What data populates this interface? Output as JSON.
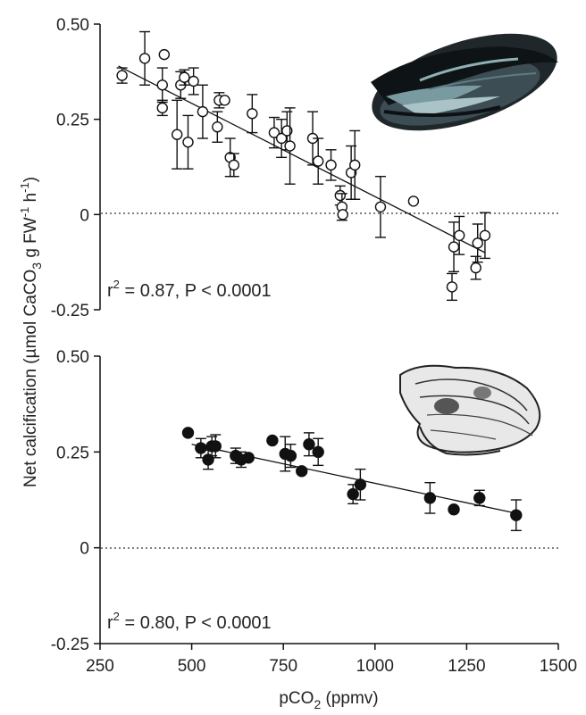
{
  "chart_data": [
    {
      "type": "scatter",
      "id": "mussel",
      "marker": "open-circle",
      "illustration": "mussel-shell",
      "annotation": "r2 = 0.87, P < 0.0001",
      "annotation_parts": {
        "r": "r",
        "exp": "2",
        "rest": " = 0.87, P < 0.0001"
      },
      "xlim": [
        250,
        1500
      ],
      "ylim": [
        -0.25,
        0.5
      ],
      "y_ticks": [
        -0.25,
        0,
        0.25,
        0.5
      ],
      "y_tick_labels": [
        "-0.25",
        "0",
        "0.25",
        "0.50"
      ],
      "trendline": {
        "x": [
          300,
          1300
        ],
        "y": [
          0.39,
          -0.1
        ]
      },
      "zero_line": "dotted",
      "points": [
        {
          "x": 310,
          "y": 0.365,
          "err": 0.02
        },
        {
          "x": 372,
          "y": 0.41,
          "err": 0.07
        },
        {
          "x": 420,
          "y": 0.34,
          "err": 0.045
        },
        {
          "x": 420,
          "y": 0.28,
          "err": 0.02
        },
        {
          "x": 425,
          "y": 0.42,
          "err": 0
        },
        {
          "x": 460,
          "y": 0.21,
          "err": 0.09
        },
        {
          "x": 470,
          "y": 0.34,
          "err": 0.035
        },
        {
          "x": 480,
          "y": 0.36,
          "err": 0.02
        },
        {
          "x": 490,
          "y": 0.19,
          "err": 0.07
        },
        {
          "x": 505,
          "y": 0.35,
          "err": 0.035
        },
        {
          "x": 530,
          "y": 0.27,
          "err": 0.07
        },
        {
          "x": 570,
          "y": 0.23,
          "err": 0.04
        },
        {
          "x": 575,
          "y": 0.3,
          "err": 0.02
        },
        {
          "x": 590,
          "y": 0.3,
          "err": 0
        },
        {
          "x": 605,
          "y": 0.15,
          "err": 0.05
        },
        {
          "x": 615,
          "y": 0.13,
          "err": 0.03
        },
        {
          "x": 665,
          "y": 0.265,
          "err": 0.05
        },
        {
          "x": 725,
          "y": 0.215,
          "err": 0.04
        },
        {
          "x": 745,
          "y": 0.2,
          "err": 0.05
        },
        {
          "x": 760,
          "y": 0.22,
          "err": 0.05
        },
        {
          "x": 768,
          "y": 0.18,
          "err": 0.1
        },
        {
          "x": 830,
          "y": 0.2,
          "err": 0.07
        },
        {
          "x": 845,
          "y": 0.14,
          "err": 0.06
        },
        {
          "x": 880,
          "y": 0.13,
          "err": 0.04
        },
        {
          "x": 905,
          "y": 0.05,
          "err": 0.025
        },
        {
          "x": 910,
          "y": 0.02,
          "err": 0.035
        },
        {
          "x": 912,
          "y": 0.0,
          "err": 0
        },
        {
          "x": 935,
          "y": 0.11,
          "err": 0.07
        },
        {
          "x": 945,
          "y": 0.13,
          "err": 0.09
        },
        {
          "x": 1015,
          "y": 0.02,
          "err": 0.08
        },
        {
          "x": 1105,
          "y": 0.035,
          "err": 0
        },
        {
          "x": 1210,
          "y": -0.19,
          "err": 0.035
        },
        {
          "x": 1215,
          "y": -0.085,
          "err": 0.065
        },
        {
          "x": 1230,
          "y": -0.055,
          "err": 0.05
        },
        {
          "x": 1275,
          "y": -0.14,
          "err": 0.03
        },
        {
          "x": 1280,
          "y": -0.075,
          "err": 0.05
        },
        {
          "x": 1300,
          "y": -0.055,
          "err": 0.06
        }
      ]
    },
    {
      "type": "scatter",
      "id": "oyster",
      "marker": "filled-circle",
      "illustration": "oyster-shell",
      "annotation": "r2 = 0.80, P < 0.0001",
      "annotation_parts": {
        "r": "r",
        "exp": "2",
        "rest": " = 0.80, P < 0.0001"
      },
      "xlim": [
        250,
        1500
      ],
      "ylim": [
        -0.25,
        0.5
      ],
      "y_ticks": [
        -0.25,
        0,
        0.25,
        0.5
      ],
      "y_tick_labels": [
        "-0.25",
        "0",
        "0.25",
        "0.50"
      ],
      "trendline": {
        "x": [
          500,
          1385
        ],
        "y": [
          0.27,
          0.09
        ]
      },
      "zero_line": "dotted",
      "points": [
        {
          "x": 490,
          "y": 0.3,
          "err": 0
        },
        {
          "x": 525,
          "y": 0.26,
          "err": 0.025
        },
        {
          "x": 545,
          "y": 0.23,
          "err": 0.025
        },
        {
          "x": 555,
          "y": 0.265,
          "err": 0.025
        },
        {
          "x": 565,
          "y": 0.265,
          "err": 0.03
        },
        {
          "x": 620,
          "y": 0.24,
          "err": 0.02
        },
        {
          "x": 635,
          "y": 0.23,
          "err": 0.02
        },
        {
          "x": 655,
          "y": 0.235,
          "err": 0
        },
        {
          "x": 720,
          "y": 0.28,
          "err": 0
        },
        {
          "x": 755,
          "y": 0.245,
          "err": 0.045
        },
        {
          "x": 770,
          "y": 0.24,
          "err": 0.03
        },
        {
          "x": 800,
          "y": 0.2,
          "err": 0
        },
        {
          "x": 820,
          "y": 0.27,
          "err": 0.03
        },
        {
          "x": 845,
          "y": 0.25,
          "err": 0.035
        },
        {
          "x": 940,
          "y": 0.14,
          "err": 0.025
        },
        {
          "x": 960,
          "y": 0.165,
          "err": 0.04
        },
        {
          "x": 1150,
          "y": 0.13,
          "err": 0.04
        },
        {
          "x": 1215,
          "y": 0.1,
          "err": 0
        },
        {
          "x": 1285,
          "y": 0.13,
          "err": 0.02
        },
        {
          "x": 1385,
          "y": 0.085,
          "err": 0.04
        }
      ]
    }
  ],
  "axes": {
    "x_ticks": [
      250,
      500,
      750,
      1000,
      1250,
      1500
    ],
    "x_tick_labels": [
      "250",
      "500",
      "750",
      "1000",
      "1250",
      "1500"
    ],
    "xlabel_parts": {
      "pre": "pCO",
      "sub": "2",
      "post": " (ppmv)"
    },
    "xlabel": "pCO2 (ppmv)",
    "ylabel": "Net calcification (µmol CaCO3 g FW-1 h-1)",
    "ylabel_parts": {
      "a": "Net calcification (µmol CaCO",
      "sub": "3",
      "b": " g FW",
      "sup1": "-1",
      "c": " h",
      "sup2": "-1",
      "d": ")"
    }
  }
}
